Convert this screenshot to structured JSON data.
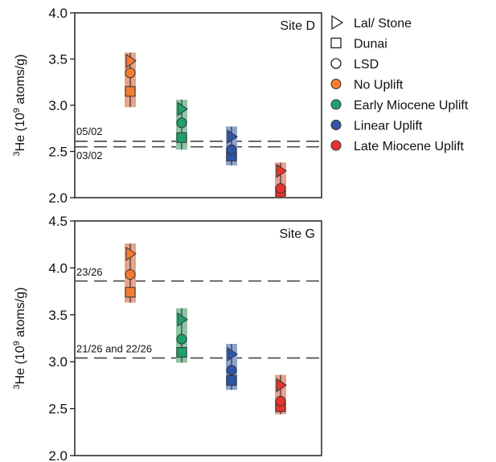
{
  "colors": {
    "no_uplift": "#f47c30",
    "early_miocene": "#1fa06a",
    "linear": "#2f55a4",
    "late_miocene": "#e8342c",
    "bar_no_uplift": "#e8a488",
    "bar_early_miocene": "#8fc4a6",
    "bar_linear": "#8da3cf",
    "bar_late_miocene": "#e8a190"
  },
  "legend": {
    "markers": [
      {
        "shape": "triangle",
        "label": "Lal/ Stone"
      },
      {
        "shape": "square",
        "label": "Dunai"
      },
      {
        "shape": "circle",
        "label": "LSD"
      }
    ],
    "colors": [
      {
        "key": "no_uplift",
        "label": "No Uplift"
      },
      {
        "key": "early_miocene",
        "label": "Early Miocene Uplift"
      },
      {
        "key": "linear",
        "label": "Linear Uplift"
      },
      {
        "key": "late_miocene",
        "label": "Late Miocene Uplift"
      }
    ]
  },
  "chart_data": [
    {
      "type": "scatter",
      "site_label": "Site D",
      "ylabel_base": "He (10",
      "ylabel_sup_iso": "3",
      "ylabel_sup_exp": "9",
      "ylabel_tail": " atoms/g)",
      "ylim": [
        2.0,
        4.0
      ],
      "yticks": [
        "2.0",
        "2.5",
        "3.0",
        "3.5",
        "4.0"
      ],
      "ytick_values": [
        2.0,
        2.5,
        3.0,
        3.5,
        4.0
      ],
      "ref_lines": [
        {
          "y": 2.61,
          "label": "05/02"
        },
        {
          "y": 2.55,
          "label": "03/02"
        }
      ],
      "groups": [
        {
          "key": "no_uplift",
          "lal": 3.48,
          "lsd": 3.35,
          "dunai": 3.15,
          "range": [
            2.98,
            3.57
          ]
        },
        {
          "key": "early_miocene",
          "lal": 2.96,
          "lsd": 2.81,
          "dunai": 2.65,
          "range": [
            2.52,
            3.06
          ]
        },
        {
          "key": "linear",
          "lal": 2.66,
          "lsd": 2.52,
          "dunai": 2.45,
          "range": [
            2.35,
            2.77
          ]
        },
        {
          "key": "late_miocene",
          "lal": 2.29,
          "lsd": 2.1,
          "dunai": 2.06,
          "range": [
            2.0,
            2.38
          ]
        }
      ]
    },
    {
      "type": "scatter",
      "site_label": "Site G",
      "ylabel_base": "He (10",
      "ylabel_sup_iso": "3",
      "ylabel_sup_exp": "9",
      "ylabel_tail": " atoms/g)",
      "ylim": [
        2.0,
        4.5
      ],
      "yticks": [
        "2.0",
        "2.5",
        "3.0",
        "3.5",
        "4.0",
        "4.5"
      ],
      "ytick_values": [
        2.0,
        2.5,
        3.0,
        3.5,
        4.0,
        4.5
      ],
      "ref_lines": [
        {
          "y": 3.86,
          "label": "23/26"
        },
        {
          "y": 3.04,
          "label": "21/26 and 22/26"
        }
      ],
      "groups": [
        {
          "key": "no_uplift",
          "lal": 4.15,
          "lsd": 3.93,
          "dunai": 3.74,
          "range": [
            3.63,
            4.26
          ]
        },
        {
          "key": "early_miocene",
          "lal": 3.45,
          "lsd": 3.24,
          "dunai": 3.1,
          "range": [
            2.99,
            3.57
          ]
        },
        {
          "key": "linear",
          "lal": 3.08,
          "lsd": 2.91,
          "dunai": 2.8,
          "range": [
            2.7,
            3.19
          ]
        },
        {
          "key": "late_miocene",
          "lal": 2.75,
          "lsd": 2.58,
          "dunai": 2.52,
          "range": [
            2.44,
            2.86
          ]
        }
      ]
    }
  ]
}
